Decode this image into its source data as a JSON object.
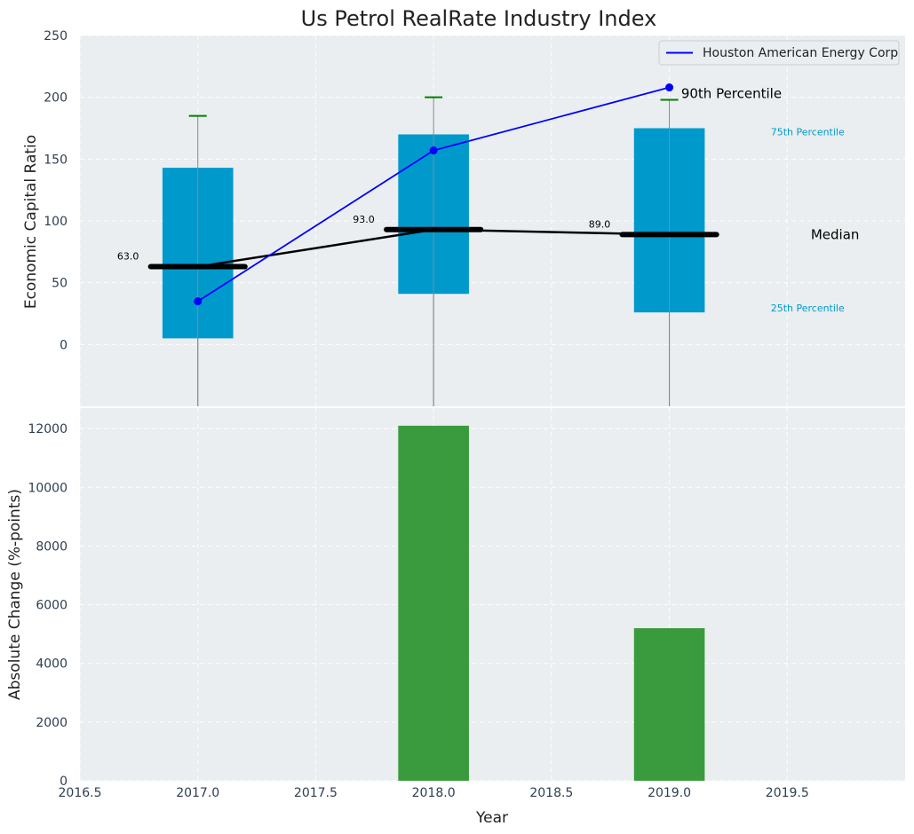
{
  "chart_data": [
    {
      "type": "box",
      "title": "Us Petrol RealRate Industry Index",
      "xlabel": "",
      "ylabel": "Economic Capital Ratio",
      "x": [
        2017,
        2018,
        2019
      ],
      "xlim": [
        2016.5,
        2020.0
      ],
      "ylim": [
        -50,
        250
      ],
      "yticks": [
        "0",
        "50",
        "100",
        "150",
        "200",
        "250"
      ],
      "grid": true,
      "p25": [
        5,
        41,
        26
      ],
      "p75": [
        143,
        170,
        175
      ],
      "p90": [
        185,
        200,
        198
      ],
      "median": [
        63,
        93,
        89
      ],
      "median_labels": [
        "63.0",
        "93.0",
        "89.0"
      ],
      "series": [
        {
          "name": "Houston American Energy Corp",
          "values": [
            35,
            157,
            208
          ],
          "color": "#0000ff"
        }
      ],
      "legend": {
        "position": "top-right",
        "entries": [
          "Houston American Energy Corp"
        ]
      },
      "annotations": {
        "p90": "90th Percentile",
        "p75": "75th Percentile",
        "median": "Median",
        "p25": "25th Percentile"
      },
      "colors": {
        "box": "#0099cc",
        "whisker": "#008000",
        "median": "#000000",
        "plot_bg": "#eaeef0"
      }
    },
    {
      "type": "bar",
      "xlabel": "Year",
      "ylabel": "Absolute Change (%-points)",
      "x": [
        2018,
        2019
      ],
      "values": [
        12100,
        5200
      ],
      "xlim": [
        2016.5,
        2020.0
      ],
      "ylim": [
        0,
        12700
      ],
      "xticks": [
        "2016.5",
        "2017.0",
        "2017.5",
        "2018.0",
        "2018.5",
        "2019.0",
        "2019.5"
      ],
      "yticks": [
        "0",
        "2000",
        "4000",
        "6000",
        "8000",
        "10000",
        "12000"
      ],
      "grid": true,
      "colors": {
        "bar": "#3a9a3e"
      }
    }
  ]
}
